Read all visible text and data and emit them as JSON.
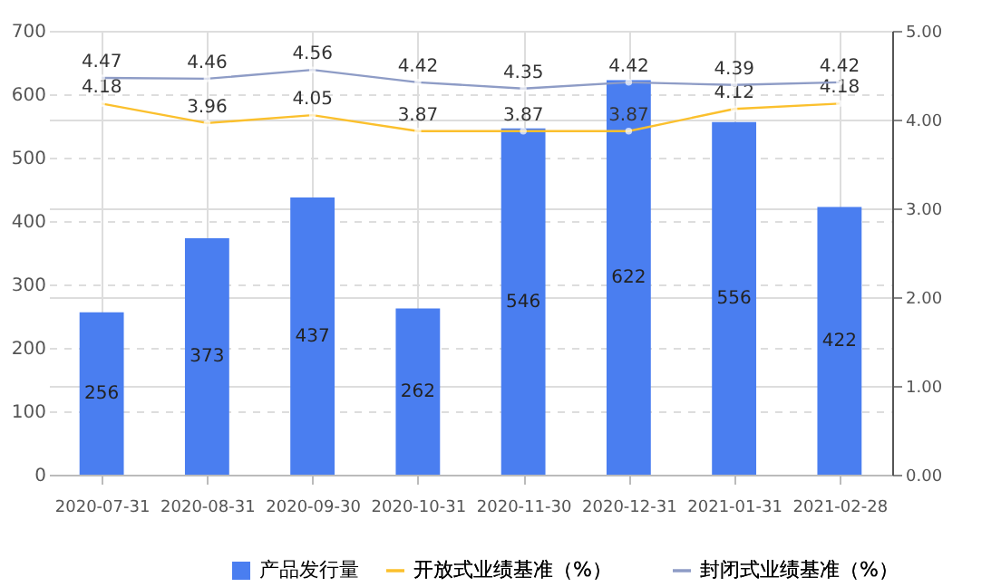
{
  "chart_data": {
    "type": "bar",
    "categories": [
      "2020-07-31",
      "2020-08-31",
      "2020-09-30",
      "2020-10-31",
      "2020-11-30",
      "2020-12-31",
      "2021-01-31",
      "2021-02-28"
    ],
    "series": [
      {
        "name": "产品发行量",
        "color": "#4a7ef0",
        "values": [
          256,
          373,
          437,
          262,
          546,
          622,
          556,
          422
        ]
      },
      {
        "name": "开放式业绩基准（%）",
        "type": "line",
        "axis": "y2",
        "color": "#fbc02d",
        "values": [
          4.18,
          3.96,
          4.05,
          3.87,
          3.87,
          3.87,
          4.12,
          4.18
        ]
      },
      {
        "name": "封闭式业绩基准（%）",
        "type": "line",
        "axis": "y2",
        "color": "#8e9cc6",
        "values": [
          4.47,
          4.46,
          4.56,
          4.42,
          4.35,
          4.42,
          4.39,
          4.42
        ]
      }
    ],
    "ylim": [
      0,
      700
    ],
    "yticks": [
      0,
      100,
      200,
      300,
      400,
      500,
      600,
      700
    ],
    "y2lim": [
      0,
      5
    ],
    "y2ticks": [
      {
        "value": 0,
        "label": "0.00"
      },
      {
        "value": 1,
        "label": "1.00"
      },
      {
        "value": 2,
        "label": "2.00"
      },
      {
        "value": 3,
        "label": "3.00"
      },
      {
        "value": 4,
        "label": "4.00"
      },
      {
        "value": 5,
        "label": "5.00"
      }
    ],
    "data_labels": true,
    "grid": true,
    "legend": "bottom",
    "marker": "circle",
    "line_style": "solid"
  }
}
